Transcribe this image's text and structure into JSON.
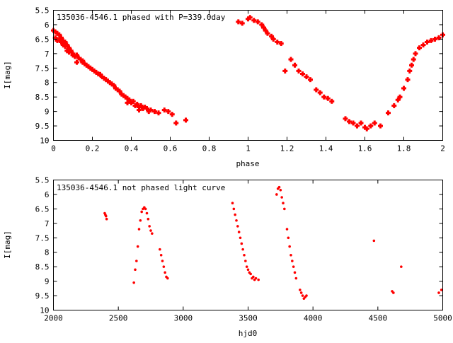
{
  "colors": {
    "points": "#ff0000",
    "axes": "#000000",
    "background": "#ffffff"
  },
  "chart_data": [
    {
      "type": "scatter",
      "title": "135036-4546.1 phased with P=339.0day",
      "xlabel": "phase",
      "ylabel": "I[mag]",
      "xlim": [
        0,
        2
      ],
      "ylim": [
        10,
        5.5
      ],
      "y_inverted": true,
      "grid": false,
      "marker": "bold-plus",
      "x_ticks": [
        "0",
        "0.2",
        "0.4",
        "0.6",
        "0.8",
        "1",
        "1.2",
        "1.4",
        "1.6",
        "1.8",
        "2"
      ],
      "y_ticks": [
        "5.5",
        "6",
        "6.5",
        "7",
        "7.5",
        "8",
        "8.5",
        "9",
        "9.5",
        "10"
      ],
      "series": [
        {
          "x": [
            0.0,
            0.01,
            0.01,
            0.02,
            0.02,
            0.03,
            0.03,
            0.04,
            0.04,
            0.05,
            0.05,
            0.06,
            0.06,
            0.07,
            0.07,
            0.08,
            0.08,
            0.09,
            0.1,
            0.1,
            0.11,
            0.12,
            0.12,
            0.13,
            0.14,
            0.15,
            0.15,
            0.16,
            0.17,
            0.18,
            0.19,
            0.2,
            0.21,
            0.22,
            0.23,
            0.24,
            0.25,
            0.26,
            0.27,
            0.28,
            0.29,
            0.3,
            0.31,
            0.32,
            0.33,
            0.34,
            0.35,
            0.36,
            0.37,
            0.38,
            0.38,
            0.39,
            0.4,
            0.41,
            0.42,
            0.43,
            0.44,
            0.44,
            0.45,
            0.46,
            0.47,
            0.48,
            0.49,
            0.5,
            0.52,
            0.54,
            0.57,
            0.59,
            0.61,
            0.63,
            0.68,
            0.95,
            0.97,
            1.0,
            1.01,
            1.03,
            1.05,
            1.07,
            1.08,
            1.09,
            1.1,
            1.12,
            1.13,
            1.15,
            1.17,
            1.19,
            1.22,
            1.24,
            1.26,
            1.28,
            1.3,
            1.32,
            1.35,
            1.37,
            1.39,
            1.41,
            1.43,
            1.5,
            1.52,
            1.54,
            1.56,
            1.58,
            1.6,
            1.61,
            1.63,
            1.65,
            1.68,
            1.72,
            1.75,
            1.77,
            1.78,
            1.8,
            1.82,
            1.83,
            1.84,
            1.85,
            1.86,
            1.88,
            1.9,
            1.92,
            1.94,
            1.96,
            1.98,
            2.0
          ],
          "y": [
            6.2,
            6.25,
            6.45,
            6.3,
            6.55,
            6.35,
            6.5,
            6.45,
            6.6,
            6.55,
            6.7,
            6.6,
            6.75,
            6.7,
            6.9,
            6.8,
            6.95,
            6.9,
            7.0,
            7.05,
            7.1,
            7.05,
            7.3,
            7.15,
            7.2,
            7.25,
            7.3,
            7.35,
            7.4,
            7.45,
            7.5,
            7.55,
            7.6,
            7.65,
            7.7,
            7.72,
            7.8,
            7.85,
            7.9,
            7.95,
            8.0,
            8.05,
            8.1,
            8.2,
            8.25,
            8.3,
            8.4,
            8.45,
            8.5,
            8.55,
            8.7,
            8.6,
            8.7,
            8.65,
            8.8,
            8.75,
            8.85,
            8.95,
            8.8,
            8.9,
            8.85,
            8.9,
            9.0,
            8.95,
            9.0,
            9.05,
            8.95,
            9.0,
            9.1,
            9.4,
            9.3,
            5.9,
            5.95,
            5.8,
            5.75,
            5.85,
            5.9,
            6.0,
            6.1,
            6.2,
            6.3,
            6.4,
            6.5,
            6.6,
            6.65,
            7.6,
            7.2,
            7.4,
            7.6,
            7.7,
            7.8,
            7.9,
            8.25,
            8.35,
            8.5,
            8.55,
            8.65,
            9.25,
            9.35,
            9.4,
            9.5,
            9.4,
            9.55,
            9.6,
            9.5,
            9.4,
            9.5,
            9.05,
            8.8,
            8.6,
            8.5,
            8.2,
            7.9,
            7.6,
            7.4,
            7.2,
            7.0,
            6.8,
            6.7,
            6.6,
            6.55,
            6.5,
            6.45,
            6.35
          ]
        }
      ]
    },
    {
      "type": "scatter",
      "title": "135036-4546.1 not phased light curve",
      "xlabel": "hjd0",
      "ylabel": "I[mag]",
      "xlim": [
        2000,
        5000
      ],
      "ylim": [
        10,
        5.5
      ],
      "y_inverted": true,
      "grid": false,
      "marker": "dot",
      "x_ticks": [
        "2000",
        "2500",
        "3000",
        "3500",
        "4000",
        "4500",
        "5000"
      ],
      "y_ticks": [
        "5.5",
        "6",
        "6.5",
        "7",
        "7.5",
        "8",
        "8.5",
        "9",
        "9.5",
        "10"
      ],
      "series": [
        {
          "x": [
            2395,
            2400,
            2405,
            2410,
            2620,
            2630,
            2640,
            2650,
            2660,
            2670,
            2680,
            2690,
            2700,
            2710,
            2720,
            2730,
            2740,
            2750,
            2760,
            2820,
            2830,
            2840,
            2850,
            2860,
            2870,
            2880,
            3380,
            3390,
            3400,
            3410,
            3420,
            3430,
            3440,
            3450,
            3460,
            3470,
            3480,
            3490,
            3500,
            3510,
            3520,
            3530,
            3540,
            3550,
            3560,
            3580,
            3720,
            3730,
            3740,
            3750,
            3760,
            3770,
            3780,
            3800,
            3810,
            3820,
            3830,
            3840,
            3850,
            3860,
            3870,
            3900,
            3910,
            3920,
            3930,
            3940,
            3950,
            4470,
            4610,
            4620,
            4680,
            4970,
            4990
          ],
          "y": [
            6.65,
            6.7,
            6.75,
            6.85,
            9.05,
            8.6,
            8.3,
            7.8,
            7.2,
            6.9,
            6.6,
            6.5,
            6.45,
            6.5,
            6.65,
            6.85,
            7.1,
            7.25,
            7.35,
            7.9,
            8.1,
            8.3,
            8.5,
            8.7,
            8.85,
            8.9,
            6.3,
            6.5,
            6.7,
            6.9,
            7.1,
            7.3,
            7.5,
            7.7,
            7.9,
            8.1,
            8.3,
            8.5,
            8.6,
            8.7,
            8.75,
            8.9,
            8.85,
            8.95,
            8.9,
            8.95,
            6.0,
            5.8,
            5.75,
            5.85,
            6.1,
            6.3,
            6.5,
            7.2,
            7.5,
            7.8,
            8.1,
            8.3,
            8.5,
            8.7,
            8.9,
            9.3,
            9.4,
            9.5,
            9.6,
            9.55,
            9.5,
            7.6,
            9.35,
            9.4,
            8.5,
            9.4,
            9.3
          ]
        }
      ]
    }
  ]
}
